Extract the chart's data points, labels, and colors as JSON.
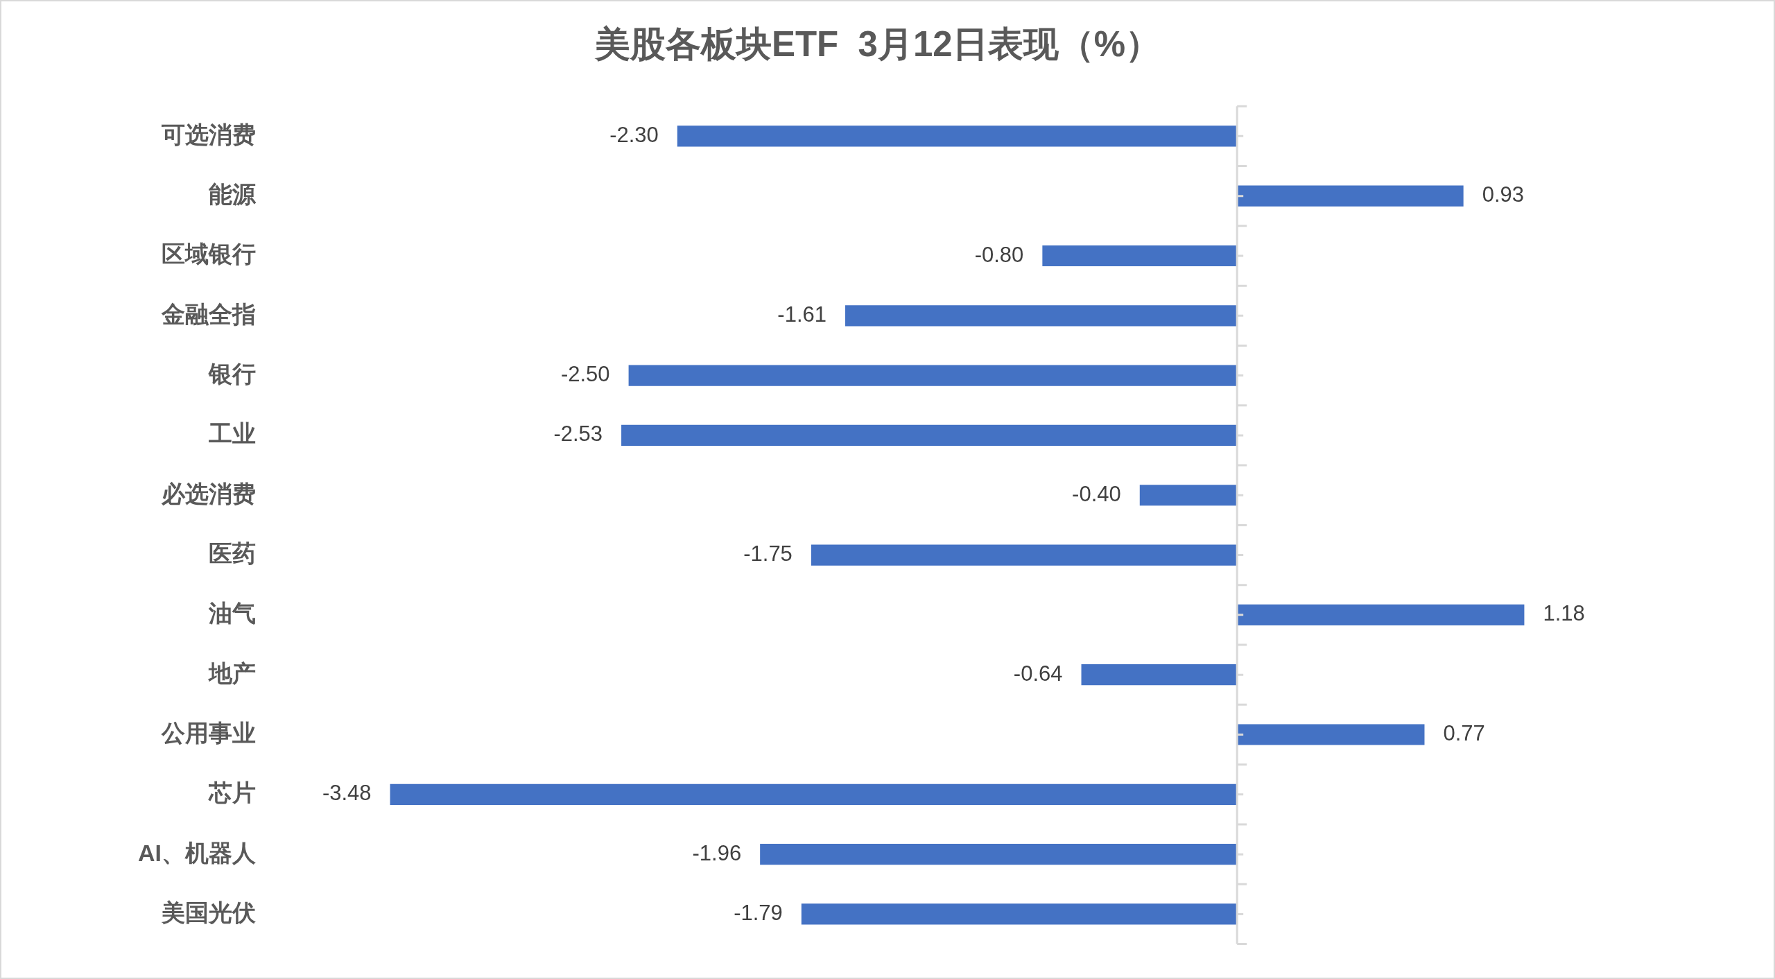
{
  "chart_data": {
    "type": "bar",
    "orientation": "horizontal",
    "title": "美股各板块ETF  3月12日表现（%）",
    "categories": [
      "可选消费",
      "能源",
      "区域银行",
      "金融全指",
      "银行",
      "工业",
      "必选消费",
      "医药",
      "油气",
      "地产",
      "公用事业",
      "芯片",
      "AI、机器人",
      "美国光伏"
    ],
    "values": [
      -2.3,
      0.93,
      -0.8,
      -1.61,
      -2.5,
      -2.53,
      -0.4,
      -1.75,
      1.18,
      -0.64,
      0.77,
      -3.48,
      -1.96,
      -1.79
    ],
    "value_labels": [
      "-2.30",
      "0.93",
      "-0.80",
      "-1.61",
      "-2.50",
      "-2.53",
      "-0.40",
      "-1.75",
      "1.18",
      "-0.64",
      "0.77",
      "-3.48",
      "-1.96",
      "-1.79"
    ],
    "color": "#4472c4",
    "tick_labels": "y"
  }
}
